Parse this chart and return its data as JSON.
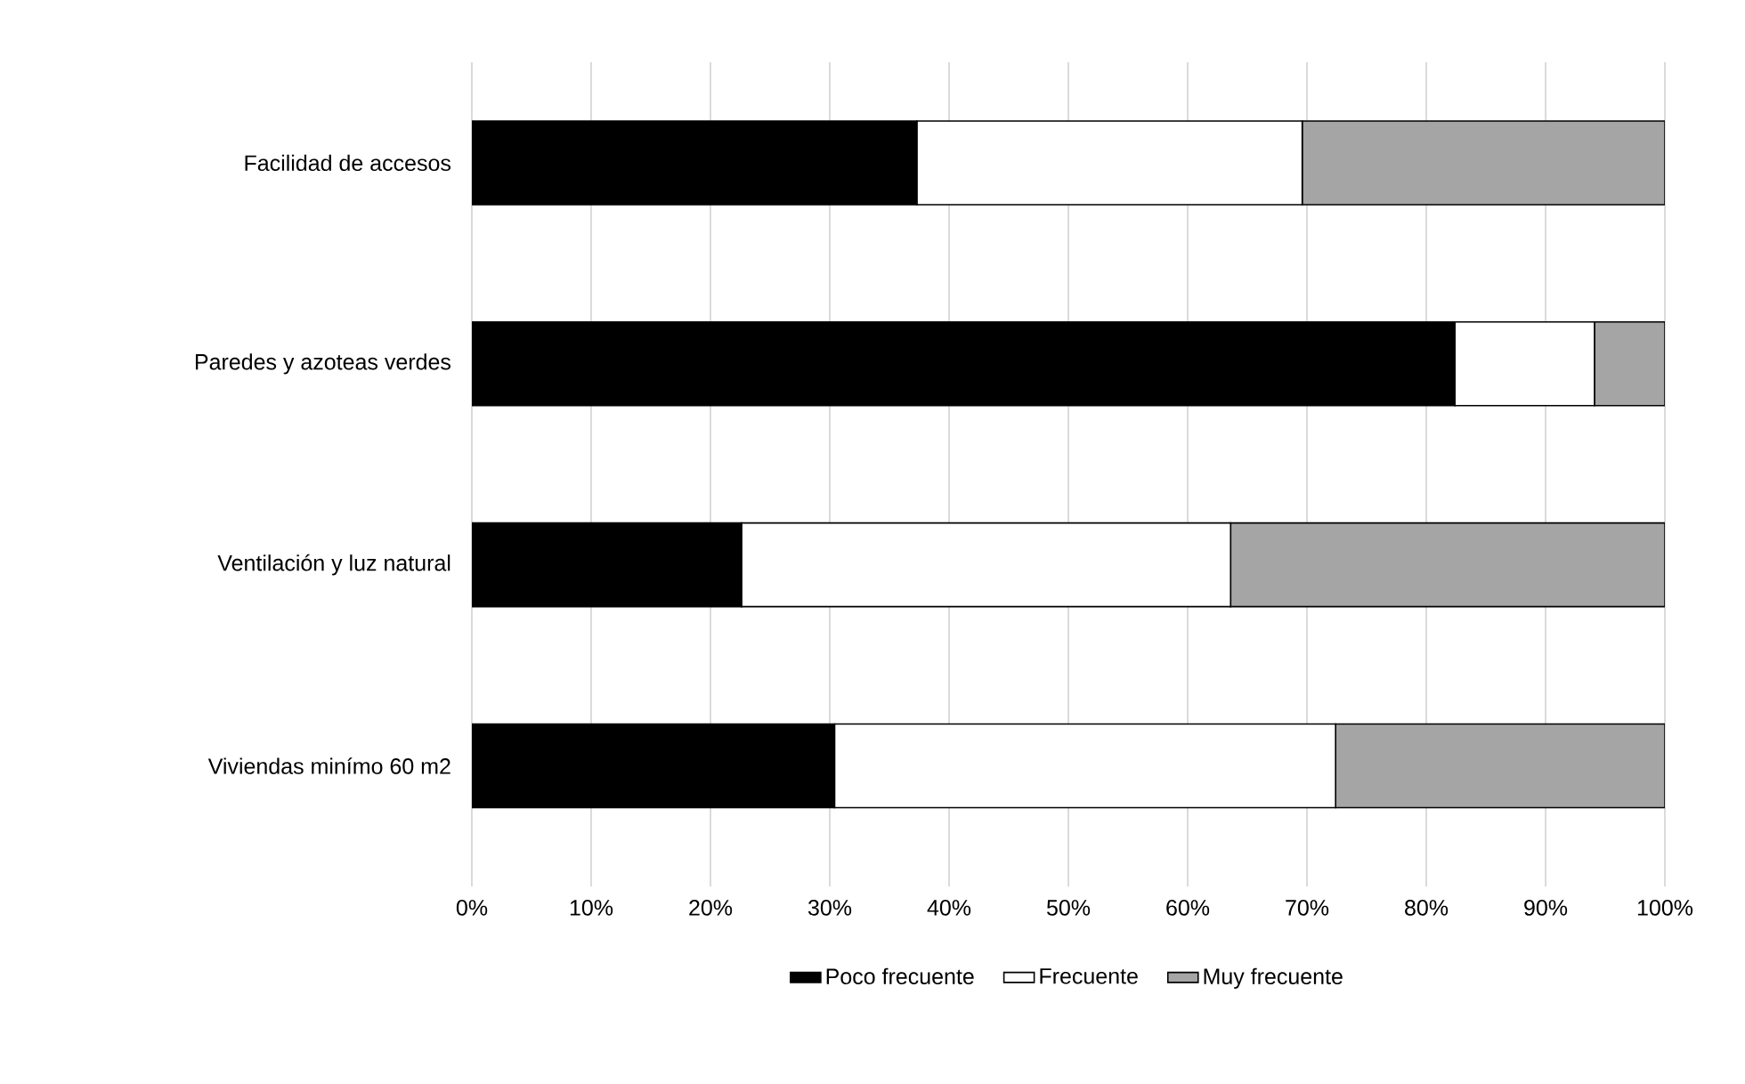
{
  "chart_data": {
    "type": "bar",
    "orientation": "horizontal",
    "stacked": true,
    "categories": [
      "Facilidad de accesos",
      "Paredes y azoteas verdes",
      "Ventilación y luz natural",
      "Viviendas minímo 60 m2"
    ],
    "series": [
      {
        "name": "Poco frecuente",
        "color": "#000000",
        "values": [
          37.3,
          82.4,
          22.6,
          30.4
        ]
      },
      {
        "name": "Frecuente",
        "color": "#ffffff",
        "values": [
          32.3,
          11.7,
          41.0,
          42.0
        ]
      },
      {
        "name": "Muy frecuente",
        "color": "#a5a5a5",
        "values": [
          30.4,
          5.9,
          36.4,
          27.6
        ]
      }
    ],
    "xlim": [
      0,
      100
    ],
    "xticks": [
      {
        "value": 0,
        "label": "0%"
      },
      {
        "value": 10,
        "label": "10%"
      },
      {
        "value": 20,
        "label": "20%"
      },
      {
        "value": 30,
        "label": "30%"
      },
      {
        "value": 40,
        "label": "40%"
      },
      {
        "value": 50,
        "label": "50%"
      },
      {
        "value": 60,
        "label": "60%"
      },
      {
        "value": 70,
        "label": "70%"
      },
      {
        "value": 80,
        "label": "80%"
      },
      {
        "value": 90,
        "label": "90%"
      },
      {
        "value": 100,
        "label": "100%"
      }
    ],
    "grid": "x",
    "legend": "bottom"
  }
}
